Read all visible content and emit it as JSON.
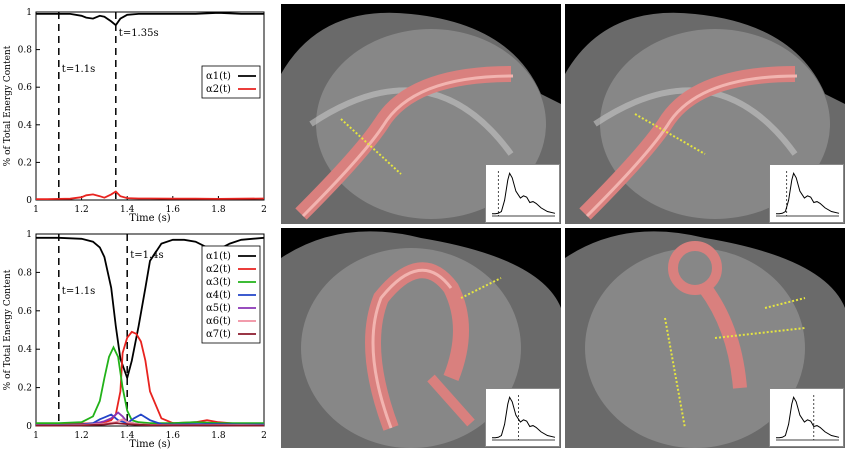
{
  "chart_data": [
    {
      "type": "line",
      "ylabel": "% of Total Energy Content",
      "xlabel": "Time (s)",
      "xlim": [
        1,
        2
      ],
      "ylim": [
        0,
        1
      ],
      "x_ticks": [
        "1",
        "1.2",
        "1.4",
        "1.6",
        "1.8",
        "2"
      ],
      "y_ticks": [
        "0",
        "0.2",
        "0.4",
        "0.6",
        "0.8",
        "1"
      ],
      "legend_position": "top-right",
      "annotations": [
        {
          "text": "t=1.1s",
          "x": 1.1
        },
        {
          "text": "t=1.35s",
          "x": 1.35
        }
      ],
      "series": [
        {
          "name": "α1(t)",
          "color": "#000000",
          "x": [
            1.0,
            1.05,
            1.1,
            1.15,
            1.2,
            1.22,
            1.25,
            1.28,
            1.3,
            1.33,
            1.35,
            1.37,
            1.4,
            1.45,
            1.5,
            1.6,
            1.7,
            1.8,
            1.9,
            2.0
          ],
          "y": [
            0.99,
            0.99,
            0.99,
            0.99,
            0.98,
            0.97,
            0.965,
            0.98,
            0.975,
            0.95,
            0.93,
            0.965,
            0.985,
            0.99,
            0.99,
            0.99,
            0.99,
            0.995,
            0.99,
            0.99
          ]
        },
        {
          "name": "α2(t)",
          "color": "#e8231f",
          "x": [
            1.0,
            1.05,
            1.1,
            1.15,
            1.2,
            1.22,
            1.25,
            1.28,
            1.3,
            1.33,
            1.35,
            1.37,
            1.4,
            1.45,
            1.5,
            1.6,
            1.7,
            1.8,
            1.9,
            2.0
          ],
          "y": [
            0.005,
            0.005,
            0.006,
            0.007,
            0.015,
            0.025,
            0.03,
            0.02,
            0.012,
            0.03,
            0.045,
            0.02,
            0.01,
            0.008,
            0.008,
            0.007,
            0.007,
            0.006,
            0.007,
            0.008
          ]
        }
      ]
    },
    {
      "type": "line",
      "ylabel": "% of Total Energy Content",
      "xlabel": "Time (s)",
      "xlim": [
        1,
        2
      ],
      "ylim": [
        0,
        1
      ],
      "x_ticks": [
        "1",
        "1.2",
        "1.4",
        "1.6",
        "1.8",
        "2"
      ],
      "y_ticks": [
        "0",
        "0.2",
        "0.4",
        "0.6",
        "0.8",
        "1"
      ],
      "legend_position": "top-right",
      "annotations": [
        {
          "text": "t=1.1s",
          "x": 1.1
        },
        {
          "text": "t=1.4s",
          "x": 1.4
        }
      ],
      "series": [
        {
          "name": "α1(t)",
          "color": "#000000",
          "x": [
            1.0,
            1.1,
            1.2,
            1.25,
            1.28,
            1.3,
            1.33,
            1.35,
            1.37,
            1.4,
            1.42,
            1.45,
            1.48,
            1.5,
            1.55,
            1.6,
            1.65,
            1.7,
            1.75,
            1.8,
            1.85,
            1.9,
            2.0
          ],
          "y": [
            0.98,
            0.98,
            0.975,
            0.96,
            0.93,
            0.88,
            0.72,
            0.52,
            0.35,
            0.25,
            0.34,
            0.52,
            0.72,
            0.86,
            0.95,
            0.97,
            0.97,
            0.96,
            0.93,
            0.92,
            0.95,
            0.97,
            0.98
          ]
        },
        {
          "name": "α2(t)",
          "color": "#e8231f",
          "x": [
            1.0,
            1.1,
            1.2,
            1.25,
            1.3,
            1.33,
            1.35,
            1.37,
            1.38,
            1.4,
            1.42,
            1.44,
            1.46,
            1.48,
            1.5,
            1.55,
            1.6,
            1.7,
            1.75,
            1.8,
            1.9,
            2.0
          ],
          "y": [
            0.01,
            0.01,
            0.012,
            0.015,
            0.02,
            0.03,
            0.06,
            0.18,
            0.38,
            0.46,
            0.49,
            0.48,
            0.44,
            0.34,
            0.18,
            0.04,
            0.015,
            0.02,
            0.03,
            0.02,
            0.01,
            0.01
          ]
        },
        {
          "name": "α3(t)",
          "color": "#22b219",
          "x": [
            1.0,
            1.1,
            1.2,
            1.25,
            1.28,
            1.3,
            1.32,
            1.34,
            1.36,
            1.38,
            1.4,
            1.42,
            1.45,
            1.5,
            1.6,
            1.7,
            1.8,
            1.9,
            2.0
          ],
          "y": [
            0.015,
            0.015,
            0.02,
            0.05,
            0.13,
            0.25,
            0.36,
            0.41,
            0.36,
            0.2,
            0.08,
            0.03,
            0.02,
            0.015,
            0.015,
            0.02,
            0.015,
            0.015,
            0.015
          ]
        },
        {
          "name": "α4(t)",
          "color": "#2244c8",
          "x": [
            1.0,
            1.1,
            1.2,
            1.25,
            1.28,
            1.3,
            1.33,
            1.36,
            1.4,
            1.43,
            1.46,
            1.5,
            1.55,
            1.6,
            1.7,
            1.8,
            1.9,
            2.0
          ],
          "y": [
            0.005,
            0.005,
            0.008,
            0.015,
            0.035,
            0.045,
            0.06,
            0.03,
            0.015,
            0.04,
            0.06,
            0.03,
            0.01,
            0.008,
            0.01,
            0.01,
            0.008,
            0.008
          ]
        },
        {
          "name": "α5(t)",
          "color": "#8a35b5",
          "x": [
            1.0,
            1.1,
            1.2,
            1.25,
            1.3,
            1.33,
            1.36,
            1.38,
            1.4,
            1.45,
            1.5,
            1.6,
            1.7,
            1.8,
            1.9,
            2.0
          ],
          "y": [
            0.003,
            0.003,
            0.004,
            0.01,
            0.025,
            0.04,
            0.07,
            0.05,
            0.02,
            0.01,
            0.006,
            0.004,
            0.004,
            0.004,
            0.003,
            0.003
          ]
        },
        {
          "name": "α6(t)",
          "color": "#f08ea0",
          "x": [
            1.0,
            1.1,
            1.2,
            1.3,
            1.35,
            1.38,
            1.4,
            1.45,
            1.5,
            1.6,
            1.7,
            1.8,
            1.9,
            2.0
          ],
          "y": [
            0.003,
            0.003,
            0.005,
            0.012,
            0.02,
            0.035,
            0.02,
            0.01,
            0.006,
            0.004,
            0.004,
            0.005,
            0.004,
            0.003
          ]
        },
        {
          "name": "α7(t)",
          "color": "#8b1a2b",
          "x": [
            1.0,
            1.1,
            1.2,
            1.3,
            1.35,
            1.4,
            1.45,
            1.5,
            1.6,
            1.7,
            1.8,
            1.9,
            2.0
          ],
          "y": [
            0.002,
            0.002,
            0.003,
            0.008,
            0.015,
            0.01,
            0.006,
            0.004,
            0.003,
            0.003,
            0.003,
            0.002,
            0.002
          ]
        }
      ]
    }
  ],
  "inset_plot": {
    "color": "#000000",
    "x": [
      0,
      0.05,
      0.1,
      0.15,
      0.2,
      0.25,
      0.28,
      0.32,
      0.38,
      0.45,
      0.5,
      0.55,
      0.6,
      0.65,
      0.7,
      0.78,
      0.88,
      1.0
    ],
    "y": [
      0.05,
      0.05,
      0.06,
      0.1,
      0.35,
      0.8,
      0.95,
      0.85,
      0.55,
      0.4,
      0.45,
      0.42,
      0.3,
      0.32,
      0.28,
      0.18,
      0.1,
      0.06
    ],
    "markers": [
      0.1,
      0.17,
      0.42,
      0.6
    ]
  }
}
